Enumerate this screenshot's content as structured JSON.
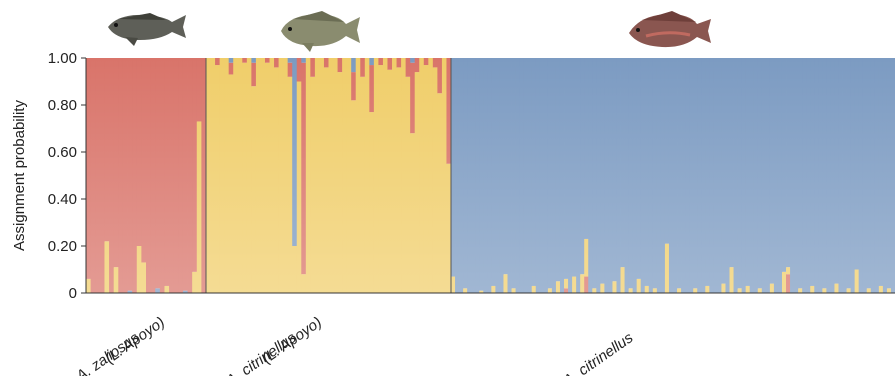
{
  "chart_data": {
    "type": "bar",
    "stacked": true,
    "ylabel": "Assignment probability",
    "ylim": [
      0,
      1
    ],
    "yticks": [
      "0",
      "0.20",
      "0.40",
      "0.60",
      "0.80",
      "1.00"
    ],
    "colors": {
      "red": "#d9746a",
      "yellow": "#f0ce6a",
      "blue": "#7c9bc2"
    },
    "groups": [
      {
        "label_line1": "A. zaliosus",
        "label_line2": "(L. Apoyo)",
        "n": 26,
        "base": "red",
        "icon": "zaliosus-fish-icon",
        "spikes": [
          {
            "i": 0,
            "yellow": 0.06
          },
          {
            "i": 4,
            "yellow": 0.22
          },
          {
            "i": 6,
            "yellow": 0.11
          },
          {
            "i": 9,
            "blue": 0.01
          },
          {
            "i": 11,
            "yellow": 0.2
          },
          {
            "i": 12,
            "yellow": 0.13
          },
          {
            "i": 15,
            "blue": 0.02
          },
          {
            "i": 17,
            "yellow": 0.03
          },
          {
            "i": 21,
            "blue": 0.01
          },
          {
            "i": 23,
            "yellow": 0.09
          },
          {
            "i": 24,
            "yellow": 0.73
          }
        ]
      },
      {
        "label_line1": "A. citrinellus",
        "label_line2": "(L. Apoyo)",
        "n": 54,
        "base": "yellow",
        "icon": "citrinellus-apoyo-fish-icon",
        "spikes": [
          {
            "i": 2,
            "red": 0.03
          },
          {
            "i": 5,
            "red": 0.05,
            "blue": 0.02
          },
          {
            "i": 8,
            "red": 0.02
          },
          {
            "i": 10,
            "red": 0.1,
            "blue": 0.02
          },
          {
            "i": 13,
            "red": 0.02
          },
          {
            "i": 15,
            "red": 0.04
          },
          {
            "i": 18,
            "red": 0.06,
            "blue": 0.02
          },
          {
            "i": 19,
            "blue": 0.8
          },
          {
            "i": 20,
            "red": 0.1
          },
          {
            "i": 21,
            "red": 0.9,
            "blue": 0.02
          },
          {
            "i": 23,
            "red": 0.08
          },
          {
            "i": 26,
            "red": 0.04
          },
          {
            "i": 29,
            "red": 0.06
          },
          {
            "i": 32,
            "red": 0.12,
            "blue": 0.06
          },
          {
            "i": 34,
            "red": 0.08
          },
          {
            "i": 36,
            "red": 0.2,
            "blue": 0.03
          },
          {
            "i": 38,
            "red": 0.03
          },
          {
            "i": 40,
            "red": 0.05
          },
          {
            "i": 42,
            "red": 0.04
          },
          {
            "i": 44,
            "red": 0.08
          },
          {
            "i": 45,
            "red": 0.3,
            "blue": 0.02
          },
          {
            "i": 46,
            "red": 0.06
          },
          {
            "i": 48,
            "red": 0.03
          },
          {
            "i": 50,
            "red": 0.04
          },
          {
            "i": 51,
            "red": 0.15
          },
          {
            "i": 53,
            "red": 0.45
          }
        ]
      },
      {
        "label_line1": "A. citrinellus",
        "label_line2": "",
        "n": 110,
        "base": "blue",
        "icon": "citrinellus-fish-icon",
        "spikes": [
          {
            "i": 0,
            "yellow": 0.07
          },
          {
            "i": 3,
            "yellow": 0.02
          },
          {
            "i": 7,
            "yellow": 0.01
          },
          {
            "i": 10,
            "yellow": 0.03
          },
          {
            "i": 13,
            "yellow": 0.08
          },
          {
            "i": 15,
            "yellow": 0.02
          },
          {
            "i": 20,
            "yellow": 0.03
          },
          {
            "i": 24,
            "yellow": 0.02
          },
          {
            "i": 26,
            "yellow": 0.05
          },
          {
            "i": 28,
            "yellow": 0.04,
            "red": 0.02
          },
          {
            "i": 30,
            "yellow": 0.07
          },
          {
            "i": 32,
            "yellow": 0.08
          },
          {
            "i": 33,
            "yellow": 0.16,
            "red": 0.07
          },
          {
            "i": 35,
            "yellow": 0.02
          },
          {
            "i": 37,
            "yellow": 0.04
          },
          {
            "i": 40,
            "yellow": 0.05
          },
          {
            "i": 42,
            "yellow": 0.11
          },
          {
            "i": 44,
            "yellow": 0.02
          },
          {
            "i": 46,
            "yellow": 0.06
          },
          {
            "i": 48,
            "yellow": 0.03
          },
          {
            "i": 50,
            "yellow": 0.02
          },
          {
            "i": 53,
            "yellow": 0.21
          },
          {
            "i": 56,
            "yellow": 0.02
          },
          {
            "i": 60,
            "yellow": 0.02
          },
          {
            "i": 63,
            "yellow": 0.03
          },
          {
            "i": 67,
            "yellow": 0.04
          },
          {
            "i": 69,
            "yellow": 0.11
          },
          {
            "i": 71,
            "yellow": 0.02
          },
          {
            "i": 73,
            "yellow": 0.03
          },
          {
            "i": 76,
            "yellow": 0.02
          },
          {
            "i": 79,
            "yellow": 0.04
          },
          {
            "i": 82,
            "yellow": 0.09
          },
          {
            "i": 83,
            "yellow": 0.03,
            "red": 0.08
          },
          {
            "i": 86,
            "yellow": 0.02
          },
          {
            "i": 89,
            "yellow": 0.03
          },
          {
            "i": 92,
            "yellow": 0.02
          },
          {
            "i": 95,
            "yellow": 0.04
          },
          {
            "i": 98,
            "yellow": 0.02
          },
          {
            "i": 100,
            "yellow": 0.1
          },
          {
            "i": 103,
            "yellow": 0.02
          },
          {
            "i": 106,
            "yellow": 0.03
          },
          {
            "i": 108,
            "yellow": 0.02
          }
        ]
      }
    ]
  }
}
